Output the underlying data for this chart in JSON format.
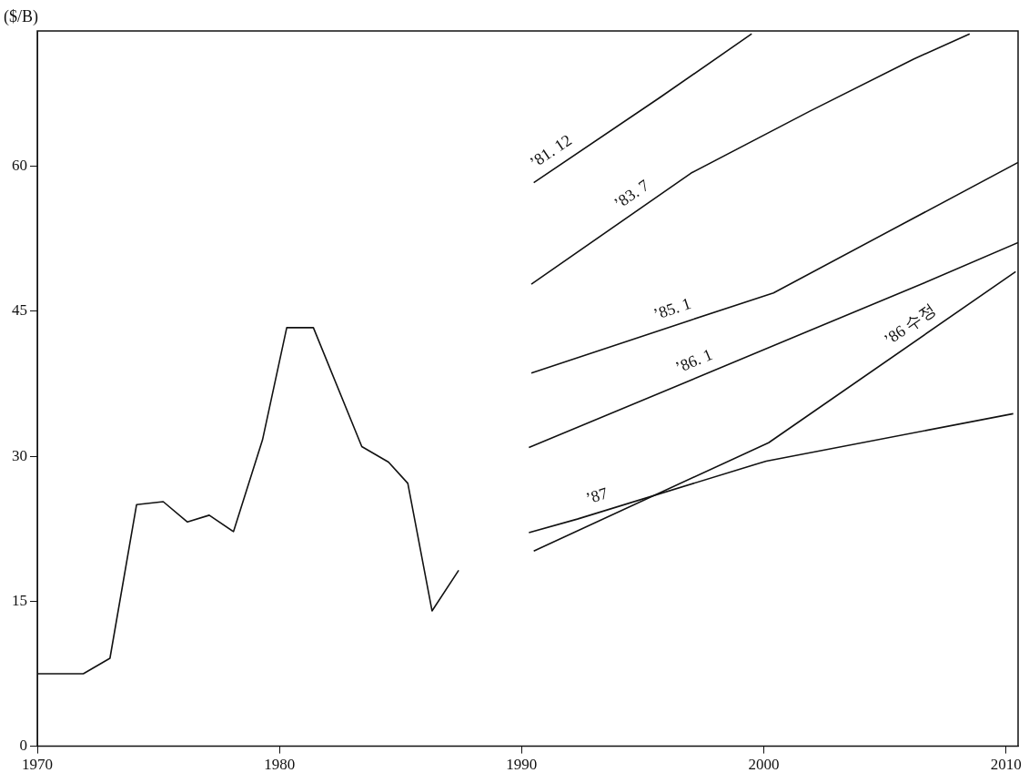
{
  "chart_data": {
    "type": "line",
    "ylabel": "($/B)",
    "xlim": [
      1970,
      2010.5
    ],
    "xticks": [
      1970,
      1980,
      1990,
      2000,
      2010
    ],
    "ylim": [
      0,
      74
    ],
    "yticks": [
      0,
      15,
      30,
      45,
      60
    ],
    "legend": false,
    "marker": "none",
    "line_style": "solid",
    "series": [
      {
        "color": "#111111",
        "x": [
          1970,
          1971.9,
          1973,
          1974.1,
          1975.2,
          1976.2,
          1977.1,
          1978.1,
          1979.3,
          1980.3,
          1981.4,
          1983.4,
          1984.5,
          1985.3,
          1986.3,
          1987.4
        ],
        "values": [
          7.5,
          7.5,
          9.1,
          25,
          25.3,
          23.2,
          23.9,
          22.2,
          31.7,
          43.3,
          43.3,
          31,
          29.4,
          27.2,
          14,
          18.2
        ]
      },
      {
        "name": "’81. 12",
        "color": "#111111",
        "x": [
          1990.5,
          1995.7,
          1999.5
        ],
        "values": [
          58.3,
          67.1,
          73.7
        ]
      },
      {
        "name": "’83. 7",
        "color": "#111111",
        "x": [
          1990.4,
          1997,
          2001.9,
          2006.2,
          2008.5
        ],
        "values": [
          47.8,
          59.3,
          65.7,
          71.1,
          73.7
        ]
      },
      {
        "name": "’85. 1",
        "color": "#111111",
        "x": [
          1990.4,
          1997,
          2000.4,
          2010.5
        ],
        "values": [
          38.6,
          44.1,
          46.9,
          60.4
        ]
      },
      {
        "name": "’86. 1",
        "color": "#111111",
        "x": [
          1990.3,
          2001.9,
          2006.6,
          2010.5
        ],
        "values": [
          30.9,
          43,
          47.9,
          52.1
        ]
      },
      {
        "name": "’86 수정",
        "color": "#111111",
        "x": [
          1990.5,
          2000.2,
          2010.4
        ],
        "values": [
          20.2,
          31.4,
          49.1
        ]
      },
      {
        "name": "’87",
        "color": "#111111",
        "x": [
          1990.3,
          1992.3,
          2000.1,
          2010.3
        ],
        "values": [
          22.1,
          23.5,
          29.5,
          34.4
        ]
      }
    ]
  }
}
